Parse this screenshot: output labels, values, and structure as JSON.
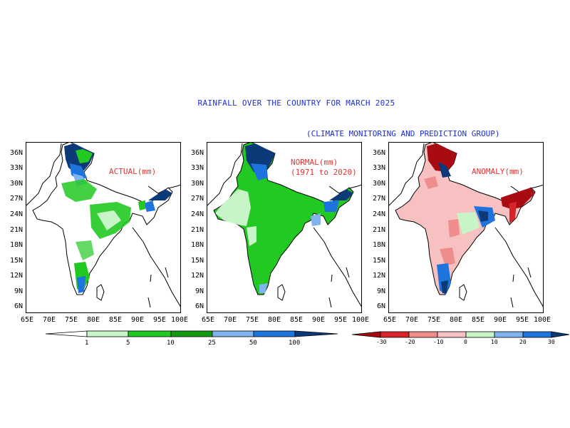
{
  "title": "RAINFALL OVER THE COUNTRY FOR MARCH 2025",
  "subtitle": "(CLIMATE MONITORING AND PREDICTION GROUP)",
  "lat_labels": [
    "36N",
    "33N",
    "30N",
    "27N",
    "24N",
    "21N",
    "18N",
    "15N",
    "12N",
    "9N",
    "6N"
  ],
  "lon_labels": [
    "65E",
    "70E",
    "75E",
    "80E",
    "85E",
    "90E",
    "95E",
    "100E"
  ],
  "panels": [
    {
      "id": "actual",
      "label_lines": [
        "ACTUAL(mm)"
      ]
    },
    {
      "id": "normal",
      "label_lines": [
        "NORMAL(mm)",
        "(1971 to 2020)"
      ]
    },
    {
      "id": "anomaly",
      "label_lines": [
        "ANOMALY(mm)"
      ]
    }
  ],
  "colorbar_rain": {
    "ticks": [
      "1",
      "5",
      "10",
      "25",
      "50",
      "100"
    ],
    "colors": [
      "#ffffff",
      "#c8f5c8",
      "#22c922",
      "#129b12",
      "#80b4ee",
      "#1d74dd",
      "#0c3a78"
    ]
  },
  "colorbar_anomaly": {
    "ticks": [
      "-30",
      "-20",
      "-10",
      "0",
      "10",
      "20",
      "30"
    ],
    "colors": [
      "#a80b12",
      "#d7242b",
      "#ef8d8d",
      "#f7c1c1",
      "#c8f5c8",
      "#80b4ee",
      "#1d74dd",
      "#0c3a78"
    ]
  },
  "colors": {
    "title": "#1c2fd6",
    "panel_label": "#e33434",
    "boundary": "#000000",
    "state_lines": "#8a8a8a"
  }
}
